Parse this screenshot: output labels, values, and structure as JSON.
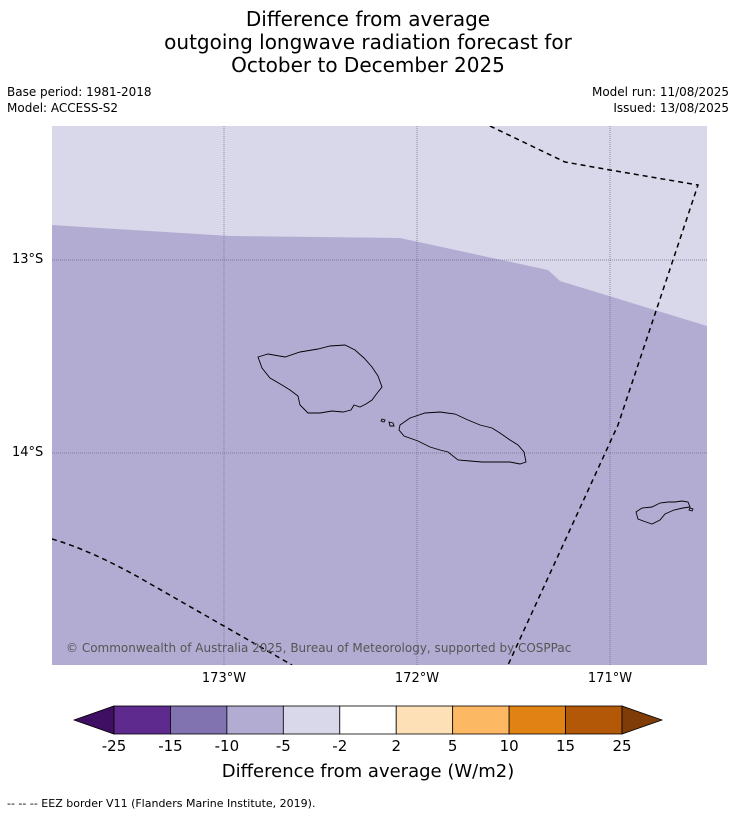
{
  "title": {
    "line1": "Difference from average",
    "line2": "outgoing longwave radiation forecast for",
    "line3": "October to December 2025"
  },
  "meta": {
    "base_period": "Base period: 1981-2018",
    "model": "Model: ACCESS-S2",
    "model_run": "Model run: 11/08/2025",
    "issued": "Issued: 13/08/2025"
  },
  "map": {
    "longitude_labels": [
      "173°W",
      "172°W",
      "171°W"
    ],
    "latitude_labels": [
      "13°S",
      "14°S"
    ],
    "copyright": "© Commonwealth of Australia 2025, Bureau of Meteorology, supported by COSPPac",
    "colors": {
      "light_band": "#d8d8ea",
      "main_band": "#b2acd3",
      "grid": "#6a6a8a",
      "coast": "#000000"
    }
  },
  "colorbar": {
    "ticks": [
      "-25",
      "-15",
      "-10",
      "-5",
      "-2",
      "2",
      "5",
      "10",
      "15",
      "25"
    ],
    "colors": [
      "#3f0f63",
      "#5e2a8d",
      "#8172b0",
      "#b2acd3",
      "#d8d8ea",
      "#ffffff",
      "#fee0b6",
      "#fdb863",
      "#e08214",
      "#b35806",
      "#7f3b08"
    ],
    "title": "Difference from average (W/m2)"
  },
  "footnote": "--  --  -- EEZ border V11 (Flanders Marine Institute, 2019)."
}
